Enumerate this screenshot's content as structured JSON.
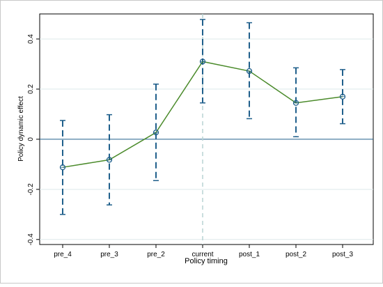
{
  "chart_data": {
    "type": "line",
    "title": "",
    "xlabel": "Policy timing",
    "ylabel": "Policy dynamic effect",
    "categories": [
      "pre_4",
      "pre_3",
      "pre_2",
      "current",
      "post_1",
      "post_2",
      "post_3"
    ],
    "series": [
      {
        "values": [
          -0.112,
          -0.082,
          0.027,
          0.31,
          0.272,
          0.145,
          0.17
        ],
        "ci_lower": [
          -0.3,
          -0.262,
          -0.165,
          0.145,
          0.082,
          0.01,
          0.062
        ],
        "ci_upper": [
          0.075,
          0.098,
          0.22,
          0.478,
          0.465,
          0.285,
          0.278
        ]
      }
    ],
    "ylim": [
      -0.42,
      0.5
    ],
    "yticks": [
      -0.4,
      -0.2,
      0,
      0.2,
      0.4
    ],
    "ytick_labels": [
      "-0.4",
      "-0.2",
      "0",
      "0.2",
      "0.4"
    ],
    "reference_lines": {
      "y_zero": 0,
      "x_category": "current"
    },
    "grid": true,
    "legend": "none",
    "colors": {
      "line": "#4a8a2a",
      "error_bars": "#1f5f8b",
      "zero_line": "#1f5f8b",
      "vertical_reference": "#b8d4d4",
      "grid": "#dde9ea"
    }
  }
}
